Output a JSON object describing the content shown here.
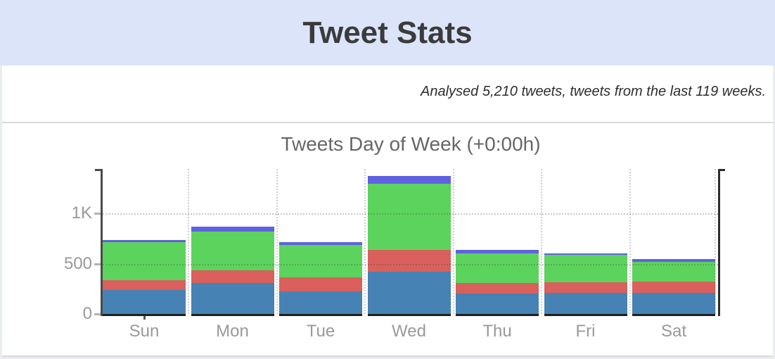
{
  "header": {
    "title": "Tweet Stats"
  },
  "summary": {
    "text": "Analysed 5,210 tweets, tweets from the last 119 weeks."
  },
  "chart_data": {
    "type": "bar",
    "stacked": true,
    "title": "Tweets Day of Week (+0:00h)",
    "categories": [
      "Sun",
      "Mon",
      "Tue",
      "Wed",
      "Thu",
      "Fri",
      "Sat"
    ],
    "series": [
      {
        "name": "segment-blue",
        "color": "#4682b4",
        "values": [
          240,
          305,
          225,
          420,
          205,
          210,
          210
        ]
      },
      {
        "name": "segment-red",
        "color": "#d9605c",
        "values": [
          95,
          130,
          140,
          215,
          105,
          105,
          110
        ]
      },
      {
        "name": "segment-green",
        "color": "#5cd35c",
        "values": [
          380,
          380,
          320,
          660,
          295,
          270,
          200
        ]
      },
      {
        "name": "segment-purple",
        "color": "#5f61e0",
        "values": [
          20,
          50,
          30,
          75,
          30,
          20,
          25
        ]
      }
    ],
    "totals_estimated": [
      735,
      865,
      715,
      1370,
      635,
      605,
      545
    ],
    "yticks": [
      {
        "value": 0,
        "label": "0"
      },
      {
        "value": 500,
        "label": "500"
      },
      {
        "value": 1000,
        "label": "1K"
      }
    ],
    "ylim": [
      0,
      1440
    ],
    "legend": "none",
    "grid": "dotted horizontal lines at y ticks, dotted vertical lines between bars"
  },
  "colors": {
    "banner_bg": "#dce4fa",
    "page_bg": "#e9edf2",
    "title_text": "#3b3b3b",
    "chart_title_text": "#666666",
    "axis_label_text": "#999999"
  }
}
